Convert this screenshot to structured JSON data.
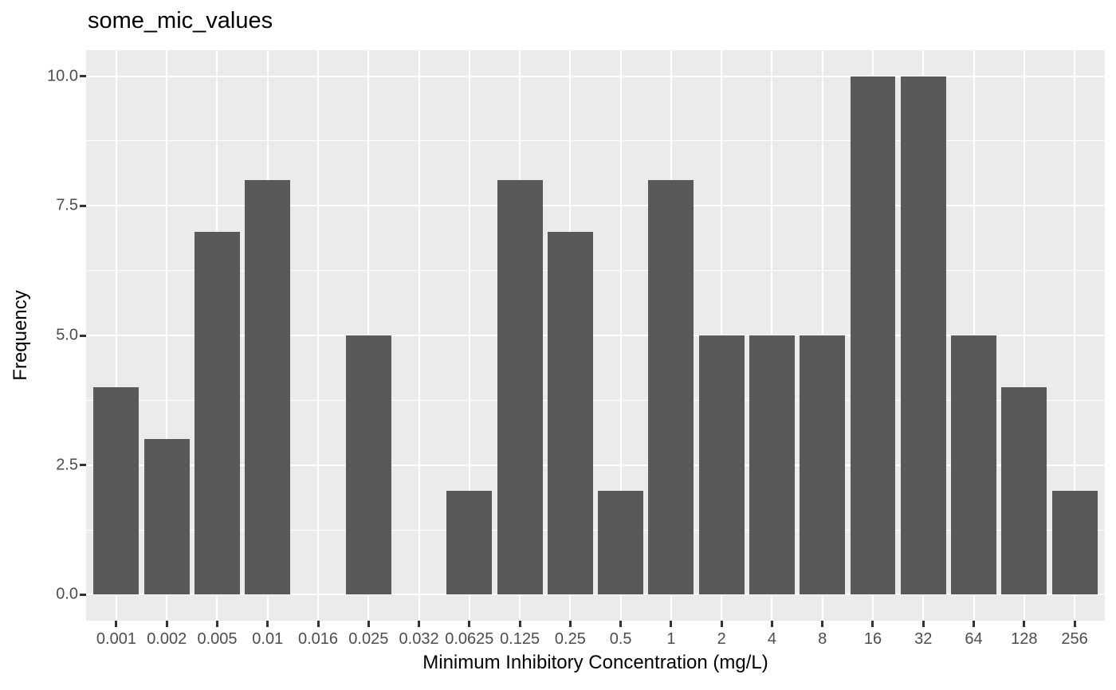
{
  "chart_data": {
    "type": "bar",
    "title": "some_mic_values",
    "xlabel": "Minimum Inhibitory Concentration (mg/L)",
    "ylabel": "Frequency",
    "categories": [
      "0.001",
      "0.002",
      "0.005",
      "0.01",
      "0.016",
      "0.025",
      "0.032",
      "0.0625",
      "0.125",
      "0.25",
      "0.5",
      "1",
      "2",
      "4",
      "8",
      "16",
      "32",
      "64",
      "128",
      "256"
    ],
    "values": [
      4,
      3,
      7,
      8,
      0,
      5,
      0,
      2,
      8,
      7,
      2,
      8,
      5,
      5,
      5,
      10,
      10,
      5,
      4,
      2
    ],
    "ylim": [
      0,
      10
    ],
    "yticks": {
      "labels": [
        "0.0",
        "2.5",
        "5.0",
        "7.5",
        "10.0"
      ],
      "values": [
        0,
        2.5,
        5,
        7.5,
        10
      ]
    },
    "minor_yticks": [
      1.25,
      3.75,
      6.25,
      8.75
    ],
    "grid": true,
    "legend": false,
    "style": {
      "bar_color": "#595959",
      "panel_background": "#EBEBEB",
      "grid_color": "#FFFFFF",
      "tick_label_color": "#4D4D4D",
      "tick_mark_color": "#333333",
      "title_color": "#000000",
      "axis_title_color": "#000000",
      "outer_background": "#FFFFFF"
    }
  }
}
